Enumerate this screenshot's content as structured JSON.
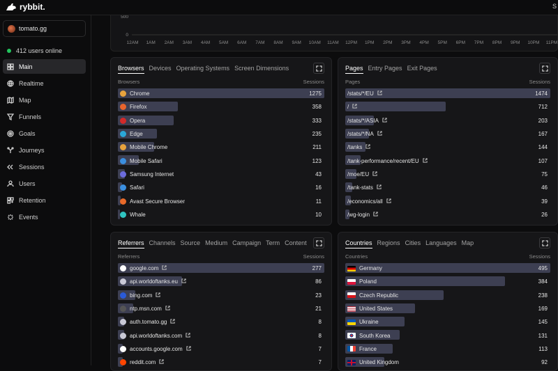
{
  "app": {
    "name": "rybbit.",
    "top_right": "S"
  },
  "site": {
    "name": "tomato.gg"
  },
  "online": {
    "text": "412 users online"
  },
  "nav": [
    {
      "label": "Main",
      "icon": "grid-icon",
      "active": true
    },
    {
      "label": "Realtime",
      "icon": "globe-icon"
    },
    {
      "label": "Map",
      "icon": "map-icon"
    },
    {
      "label": "Funnels",
      "icon": "funnel-icon"
    },
    {
      "label": "Goals",
      "icon": "target-icon"
    },
    {
      "label": "Journeys",
      "icon": "journey-icon"
    },
    {
      "label": "Sessions",
      "icon": "sessions-icon"
    },
    {
      "label": "Users",
      "icon": "user-icon"
    },
    {
      "label": "Retention",
      "icon": "retention-icon"
    },
    {
      "label": "Events",
      "icon": "events-icon"
    }
  ],
  "chart": {
    "y_ticks": [
      "500",
      "0"
    ],
    "x_ticks": [
      "12AM",
      "1AM",
      "2AM",
      "3AM",
      "4AM",
      "5AM",
      "6AM",
      "7AM",
      "8AM",
      "9AM",
      "10AM",
      "11AM",
      "12PM",
      "1PM",
      "2PM",
      "3PM",
      "4PM",
      "5PM",
      "6PM",
      "7PM",
      "8PM",
      "9PM",
      "10PM",
      "11PM"
    ]
  },
  "browsers_panel": {
    "tabs": [
      "Browsers",
      "Devices",
      "Operating Systems",
      "Screen Dimensions"
    ],
    "col_left": "Browsers",
    "col_right": "Sessions",
    "rows": [
      {
        "label": "Chrome",
        "value": "1275",
        "pct": 1.0,
        "color": "#e8a33d"
      },
      {
        "label": "Firefox",
        "value": "358",
        "pct": 0.29,
        "color": "#e8642c"
      },
      {
        "label": "Opera",
        "value": "333",
        "pct": 0.27,
        "color": "#d22a2a"
      },
      {
        "label": "Edge",
        "value": "235",
        "pct": 0.19,
        "color": "#2aa7d8"
      },
      {
        "label": "Mobile Chrome",
        "value": "211",
        "pct": 0.175,
        "color": "#e8a33d"
      },
      {
        "label": "Mobile Safari",
        "value": "123",
        "pct": 0.1,
        "color": "#3b8fe0"
      },
      {
        "label": "Samsung Internet",
        "value": "43",
        "pct": 0.035,
        "color": "#6b6bdc"
      },
      {
        "label": "Safari",
        "value": "16",
        "pct": 0.02,
        "color": "#3b8fe0"
      },
      {
        "label": "Avast Secure Browser",
        "value": "11",
        "pct": 0.012,
        "color": "#e86a2a"
      },
      {
        "label": "Whale",
        "value": "10",
        "pct": 0.011,
        "color": "#2fc4c0"
      }
    ]
  },
  "pages_panel": {
    "tabs": [
      "Pages",
      "Entry Pages",
      "Exit Pages"
    ],
    "col_left": "Pages",
    "col_right": "Sessions",
    "rows": [
      {
        "label": "/stats/*/EU",
        "value": "1474",
        "pct": 1.0
      },
      {
        "label": "/",
        "value": "712",
        "pct": 0.49
      },
      {
        "label": "/stats/*/ASIA",
        "value": "203",
        "pct": 0.14
      },
      {
        "label": "/stats/*/NA",
        "value": "167",
        "pct": 0.115
      },
      {
        "label": "/tanks",
        "value": "144",
        "pct": 0.1
      },
      {
        "label": "/tank-performance/recent/EU",
        "value": "107",
        "pct": 0.075
      },
      {
        "label": "/moe/EU",
        "value": "75",
        "pct": 0.053
      },
      {
        "label": "/tank-stats",
        "value": "46",
        "pct": 0.033
      },
      {
        "label": "/economics/all",
        "value": "39",
        "pct": 0.028
      },
      {
        "label": "/wg-login",
        "value": "26",
        "pct": 0.019
      }
    ]
  },
  "referrers_panel": {
    "tabs": [
      "Referrers",
      "Channels",
      "Source",
      "Medium",
      "Campaign",
      "Term",
      "Content"
    ],
    "col_left": "Referrers",
    "col_right": "Sessions",
    "rows": [
      {
        "label": "google.com",
        "value": "277",
        "pct": 1.0,
        "color": "#ffffff"
      },
      {
        "label": "api.worldoftanks.eu",
        "value": "86",
        "pct": 0.31,
        "color": "#c9c9d6"
      },
      {
        "label": "bing.com",
        "value": "23",
        "pct": 0.085,
        "color": "#2a5ad8"
      },
      {
        "label": "ntp.msn.com",
        "value": "21",
        "pct": 0.075,
        "color": "#555"
      },
      {
        "label": "auth.tomato.gg",
        "value": "8",
        "pct": 0.03,
        "color": "#c9c9d6"
      },
      {
        "label": "api.worldoftanks.com",
        "value": "8",
        "pct": 0.03,
        "color": "#c9c9d6"
      },
      {
        "label": "accounts.google.com",
        "value": "7",
        "pct": 0.025,
        "color": "#ffffff"
      },
      {
        "label": "reddit.com",
        "value": "7",
        "pct": 0.025,
        "color": "#ff4500"
      }
    ]
  },
  "countries_panel": {
    "tabs": [
      "Countries",
      "Regions",
      "Cities",
      "Languages",
      "Map"
    ],
    "col_left": "Countries",
    "col_right": "Sessions",
    "rows": [
      {
        "label": "Germany",
        "value": "495",
        "pct": 1.0,
        "flag": "de"
      },
      {
        "label": "Poland",
        "value": "384",
        "pct": 0.78,
        "flag": "pl"
      },
      {
        "label": "Czech Republic",
        "value": "238",
        "pct": 0.48,
        "flag": "cz"
      },
      {
        "label": "United States",
        "value": "169",
        "pct": 0.34,
        "flag": "us"
      },
      {
        "label": "Ukraine",
        "value": "145",
        "pct": 0.29,
        "flag": "ua"
      },
      {
        "label": "South Korea",
        "value": "131",
        "pct": 0.265,
        "flag": "kr"
      },
      {
        "label": "France",
        "value": "113",
        "pct": 0.23,
        "flag": "fr"
      },
      {
        "label": "United Kingdom",
        "value": "92",
        "pct": 0.19,
        "flag": "gb"
      }
    ]
  },
  "colors": {
    "bar": "#3d3f52",
    "online": "#22c55e",
    "background": "#0c0c0d",
    "panel": "#161618"
  }
}
